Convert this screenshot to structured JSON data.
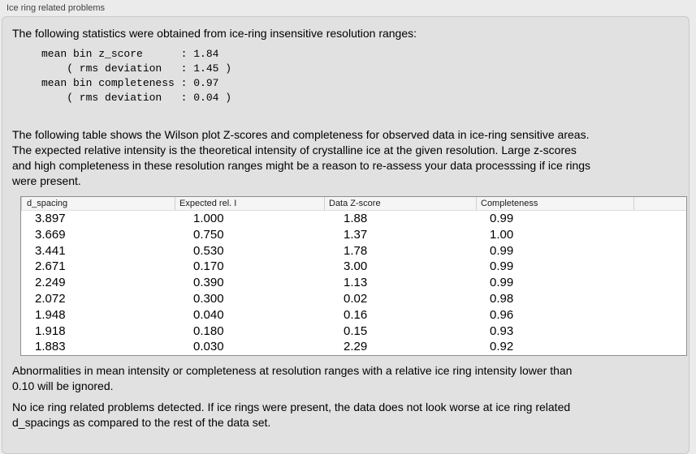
{
  "panel": {
    "title": "Ice ring related problems",
    "stats_intro": "The following statistics were obtained from ice-ring insensitive resolution ranges:",
    "stats_block": "mean bin z_score      : 1.84\n    ( rms deviation   : 1.45 )\nmean bin completeness : 0.97\n    ( rms deviation   : 0.04 )",
    "table_intro": "The following table shows the Wilson plot Z-scores and completeness for observed data in ice-ring sensitive areas.\nThe expected relative intensity is the theoretical intensity of crystalline ice at the given resolution. Large z-scores\nand high completeness in these resolution ranges might be a reason to re-assess your data processsing if ice rings\nwere present.",
    "note_ignored": "Abnormalities in mean intensity or completeness at resolution ranges with a relative ice ring intensity lower than\n0.10 will be ignored.",
    "conclusion": "No ice ring related problems detected. If ice rings were present, the data does not look worse at ice ring related\nd_spacings as compared to the rest of the data set."
  },
  "table": {
    "columns": [
      "d_spacing",
      "Expected rel. I",
      "Data Z-score",
      "Completeness",
      ""
    ],
    "rows": [
      [
        "3.897",
        "1.000",
        "1.88",
        "0.99"
      ],
      [
        "3.669",
        "0.750",
        "1.37",
        "1.00"
      ],
      [
        "3.441",
        "0.530",
        "1.78",
        "0.99"
      ],
      [
        "2.671",
        "0.170",
        "3.00",
        "0.99"
      ],
      [
        "2.249",
        "0.390",
        "1.13",
        "0.99"
      ],
      [
        "2.072",
        "0.300",
        "0.02",
        "0.98"
      ],
      [
        "1.948",
        "0.040",
        "0.16",
        "0.96"
      ],
      [
        "1.918",
        "0.180",
        "0.15",
        "0.93"
      ],
      [
        "1.883",
        "0.030",
        "2.29",
        "0.92"
      ]
    ]
  },
  "colors": {
    "page-bg": "#ebebeb",
    "panel-bg": "#e1e1e1",
    "panel-border": "#c9c9c9",
    "table-bg": "#ffffff",
    "table-border": "#8e8e8e",
    "header-bg": "#f5f5f5",
    "header-divider": "#cfcfcf",
    "header-underline": "#dedede",
    "text": "#000000",
    "label-text": "#3f3f3f"
  }
}
